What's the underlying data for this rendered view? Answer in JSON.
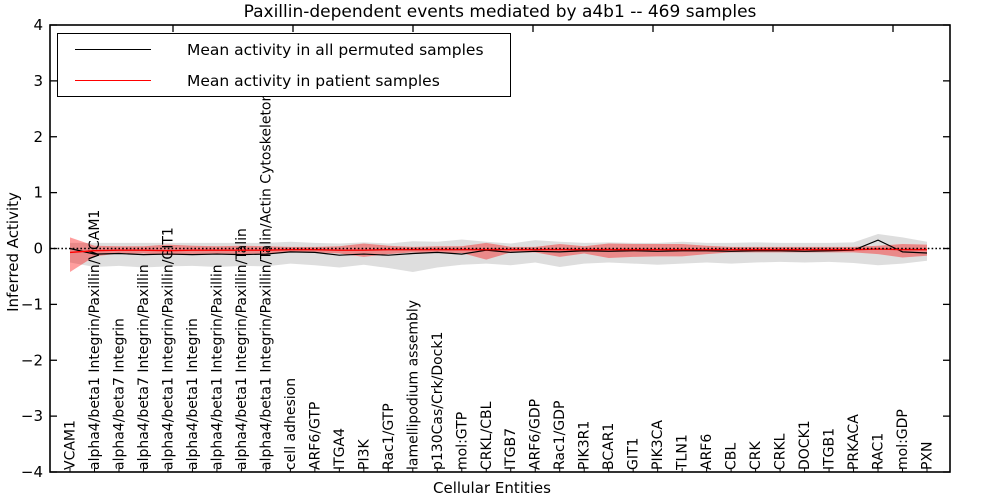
{
  "title": "Paxillin-dependent events mediated by a4b1 -- 469 samples",
  "legend": {
    "items": [
      {
        "label": "Mean activity in all permuted samples",
        "color": "#000000"
      },
      {
        "label": "Mean activity in patient samples",
        "color": "#ff0000"
      }
    ]
  },
  "axes": {
    "ylabel": "Inferred Activity",
    "xlabel": "Cellular Entities"
  },
  "chart_data": {
    "type": "line",
    "title": "Paxillin-dependent events mediated by a4b1 -- 469 samples",
    "xlabel": "Cellular Entities",
    "ylabel": "Inferred Activity",
    "ylim": [
      -4,
      4
    ],
    "yticks": [
      -4,
      -3,
      -2,
      -1,
      0,
      1,
      2,
      3,
      4
    ],
    "grid": false,
    "legend_position": "upper left",
    "categories": [
      "VCAM1",
      "alpha4/beta1 Integrin/Paxillin/VCAM1",
      "alpha4/beta7 Integrin",
      "alpha4/beta7 Integrin/Paxillin",
      "alpha4/beta1 Integrin/Paxillin/GIT1",
      "alpha4/beta1 Integrin",
      "alpha4/beta1 Integrin/Paxillin",
      "alpha4/beta1 Integrin/Paxillin/Talin",
      "alpha4/beta1 Integrin/Paxillin/Talin/Actin Cytoskeleton",
      "cell adhesion",
      "ARF6/GTP",
      "ITGA4",
      "PI3K",
      "Rac1/GTP",
      "lamellipodium assembly",
      "p130Cas/Crk/Dock1",
      "mol:GTP",
      "CRKL/CBL",
      "ITGB7",
      "ARF6/GDP",
      "Rac1/GDP",
      "PIK3R1",
      "BCAR1",
      "GIT1",
      "PIK3CA",
      "TLN1",
      "ARF6",
      "CBL",
      "CRK",
      "CRKL",
      "DOCK1",
      "ITGB1",
      "PRKACA",
      "RAC1",
      "mol:GDP",
      "PXN"
    ],
    "series": [
      {
        "name": "Mean activity in all permuted samples",
        "color": "#000000",
        "values": [
          0.0,
          -0.1,
          -0.09,
          -0.11,
          -0.1,
          -0.11,
          -0.1,
          -0.11,
          -0.1,
          -0.06,
          -0.07,
          -0.12,
          -0.1,
          -0.12,
          -0.09,
          -0.07,
          -0.1,
          -0.03,
          -0.07,
          -0.05,
          -0.06,
          -0.04,
          -0.05,
          -0.04,
          -0.05,
          -0.04,
          -0.04,
          -0.05,
          -0.04,
          -0.04,
          -0.05,
          -0.04,
          -0.03,
          0.15,
          -0.06,
          -0.08
        ]
      },
      {
        "name": "Mean activity in patient samples",
        "color": "#ff0000",
        "values": [
          -0.07,
          -0.04,
          -0.03,
          -0.03,
          -0.04,
          -0.03,
          -0.03,
          -0.03,
          -0.03,
          -0.02,
          -0.02,
          -0.03,
          -0.03,
          -0.02,
          -0.02,
          -0.02,
          -0.02,
          -0.02,
          -0.02,
          -0.02,
          -0.02,
          -0.02,
          -0.02,
          -0.02,
          -0.02,
          -0.02,
          -0.02,
          -0.02,
          -0.02,
          -0.02,
          -0.02,
          -0.02,
          -0.02,
          -0.01,
          -0.02,
          -0.02
        ]
      }
    ],
    "bands": [
      {
        "name": "permuted samples range",
        "color": "#000000",
        "opacity": 0.13,
        "upper": [
          0.1,
          0.1,
          0.1,
          0.1,
          0.1,
          0.1,
          0.1,
          0.1,
          0.1,
          0.12,
          0.1,
          0.09,
          0.11,
          0.09,
          0.13,
          0.12,
          0.16,
          0.12,
          0.09,
          0.15,
          0.12,
          0.1,
          0.11,
          0.1,
          0.1,
          0.12,
          0.1,
          0.1,
          0.11,
          0.1,
          0.1,
          0.1,
          0.11,
          0.26,
          0.2,
          0.12
        ],
        "lower": [
          -0.25,
          -0.33,
          -0.31,
          -0.34,
          -0.32,
          -0.31,
          -0.33,
          -0.31,
          -0.32,
          -0.27,
          -0.3,
          -0.34,
          -0.29,
          -0.35,
          -0.42,
          -0.34,
          -0.29,
          -0.27,
          -0.3,
          -0.25,
          -0.33,
          -0.27,
          -0.25,
          -0.27,
          -0.29,
          -0.27,
          -0.25,
          -0.27,
          -0.25,
          -0.24,
          -0.25,
          -0.24,
          -0.26,
          -0.3,
          -0.27,
          -0.22
        ]
      },
      {
        "name": "patient samples range",
        "color": "#ff0000",
        "opacity": 0.38,
        "upper": [
          0.2,
          0.05,
          0.04,
          0.04,
          0.07,
          0.05,
          0.04,
          0.05,
          0.04,
          0.03,
          0.03,
          0.04,
          0.09,
          0.05,
          0.03,
          0.04,
          0.04,
          0.1,
          0.03,
          0.03,
          0.08,
          0.04,
          0.09,
          0.08,
          0.08,
          0.08,
          0.05,
          0.03,
          0.03,
          0.03,
          0.03,
          0.03,
          0.03,
          0.05,
          0.08,
          0.07
        ],
        "lower": [
          -0.42,
          -0.14,
          -0.09,
          -0.09,
          -0.12,
          -0.1,
          -0.09,
          -0.1,
          -0.09,
          -0.07,
          -0.07,
          -0.09,
          -0.15,
          -0.1,
          -0.07,
          -0.08,
          -0.08,
          -0.2,
          -0.07,
          -0.07,
          -0.15,
          -0.09,
          -0.17,
          -0.15,
          -0.14,
          -0.14,
          -0.1,
          -0.07,
          -0.07,
          -0.07,
          -0.07,
          -0.07,
          -0.07,
          -0.1,
          -0.16,
          -0.13
        ]
      }
    ],
    "zero_line": {
      "y": 0,
      "style": "dotted",
      "color": "#000000"
    }
  }
}
